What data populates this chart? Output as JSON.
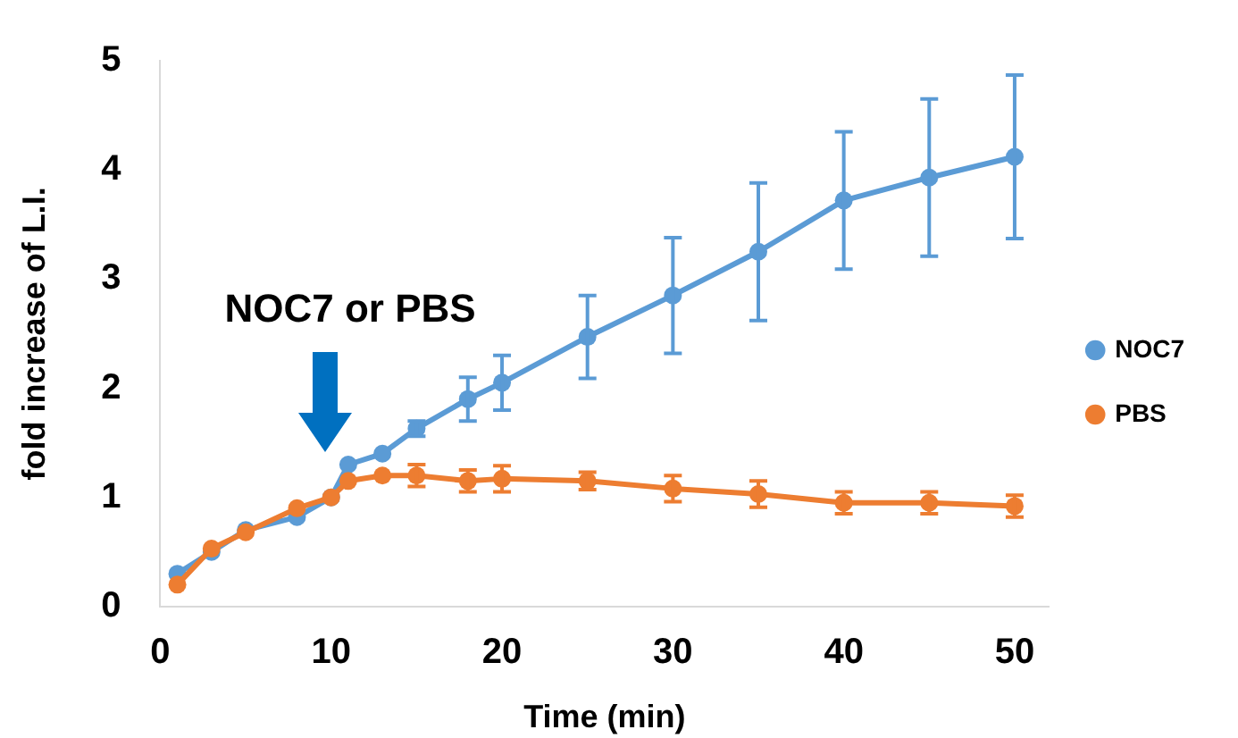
{
  "chart_data": {
    "type": "line",
    "xlabel": "Time (min)",
    "ylabel": "fold increase of L.I.",
    "x": [
      1,
      3,
      5,
      8,
      10,
      11,
      13,
      15,
      18,
      20,
      25,
      30,
      35,
      40,
      45,
      50
    ],
    "xlim": [
      0,
      52
    ],
    "xticks": [
      0,
      10,
      20,
      30,
      40,
      50
    ],
    "ylim": [
      0,
      5
    ],
    "yticks": [
      0,
      1,
      2,
      3,
      4,
      5
    ],
    "grid": false,
    "legend": "right",
    "marker": "circle",
    "line_style": "solid",
    "annotations": [
      "NOC7 or PBS"
    ],
    "series": [
      {
        "name": "NOC7",
        "color": "#5b9bd5",
        "values": [
          0.3,
          0.5,
          0.7,
          0.82,
          1.0,
          1.3,
          1.4,
          1.63,
          1.9,
          2.05,
          2.47,
          2.85,
          3.25,
          3.72,
          3.93,
          4.12
        ],
        "errors": [
          null,
          null,
          null,
          null,
          null,
          null,
          null,
          0.07,
          0.2,
          0.25,
          0.38,
          0.53,
          0.63,
          0.63,
          0.72,
          0.75
        ]
      },
      {
        "name": "PBS",
        "color": "#ed7d31",
        "values": [
          0.2,
          0.53,
          0.68,
          0.9,
          1.0,
          1.15,
          1.2,
          1.2,
          1.15,
          1.17,
          1.15,
          1.08,
          1.03,
          0.95,
          0.95,
          0.92
        ],
        "errors": [
          null,
          null,
          null,
          null,
          null,
          null,
          null,
          0.1,
          0.1,
          0.12,
          0.08,
          0.12,
          0.12,
          0.1,
          0.1,
          0.1
        ]
      }
    ]
  }
}
